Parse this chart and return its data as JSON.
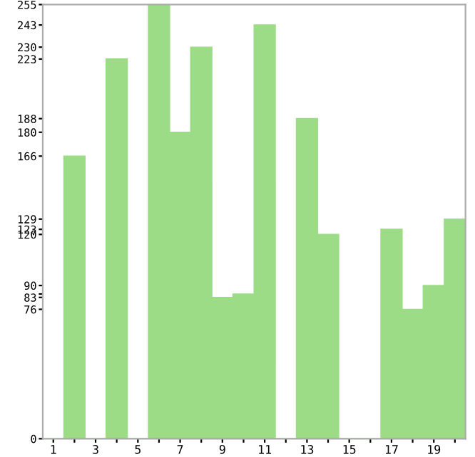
{
  "chart_data": {
    "type": "bar",
    "categories": [
      "1",
      null,
      "3",
      null,
      "5",
      null,
      "7",
      null,
      "9",
      null,
      "11",
      null,
      "13",
      null,
      "15",
      null,
      "17",
      null,
      "19",
      null
    ],
    "values": [
      0,
      166,
      0,
      223,
      0,
      255,
      180,
      230,
      83,
      85,
      243,
      0,
      188,
      120,
      0,
      0,
      123,
      76,
      90,
      129
    ],
    "color": "#9ddc87",
    "ylim": [
      0,
      255
    ],
    "yticks": [
      0,
      76,
      83,
      {
        "value": 85,
        "label": null
      },
      90,
      120,
      123,
      129,
      166,
      180,
      188,
      223,
      230,
      243,
      255
    ],
    "grid": false
  }
}
